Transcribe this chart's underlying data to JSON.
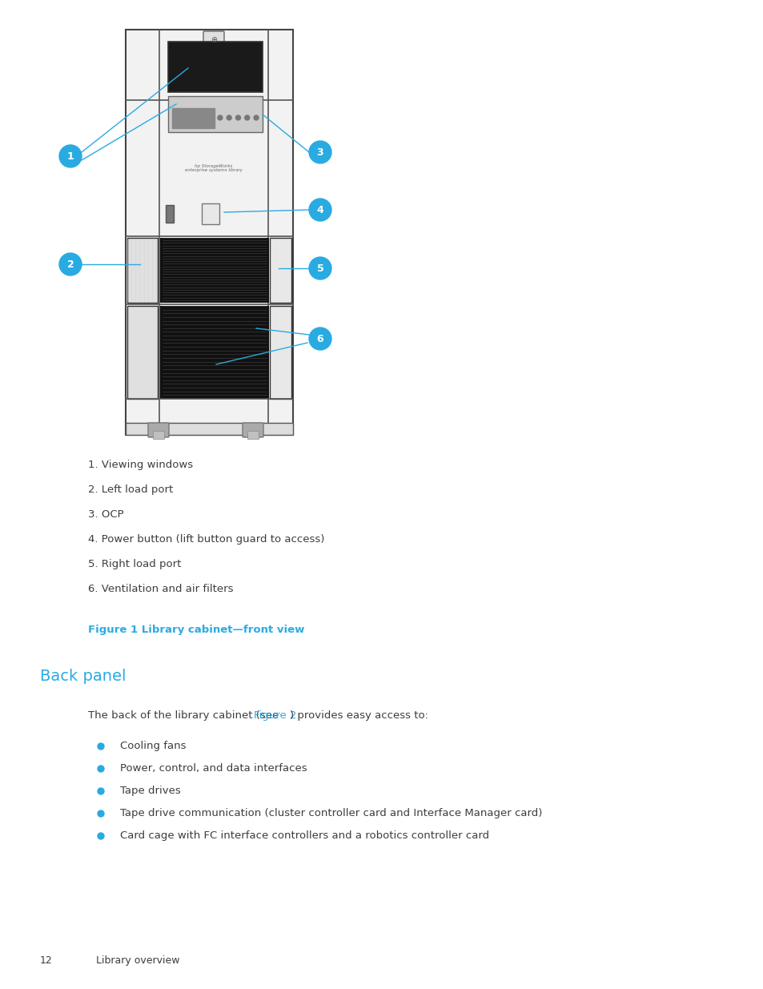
{
  "bg_color": "#ffffff",
  "page_width": 9.54,
  "page_height": 12.35,
  "callout_color": "#29abe2",
  "text_color": "#3d3d3d",
  "cyan_color": "#29abe2",
  "section_color": "#29abe2",
  "numbered_items": [
    "1. Viewing windows",
    "2. Left load port",
    "3. OCP",
    "4. Power button (lift button guard to access)",
    "5. Right load port",
    "6. Ventilation and air filters"
  ],
  "figure_caption": "Figure 1 Library cabinet—front view",
  "section_title": "Back panel",
  "body_intro_before": "The back of the library cabinet (see ",
  "body_intro_link": "Figure 2",
  "body_intro_after": ") provides easy access to:",
  "bullet_items": [
    "Cooling fans",
    "Power, control, and data interfaces",
    "Tape drives",
    "Tape drive communication (cluster controller card and Interface Manager card)",
    "Card cage with FC interface controllers and a robotics controller card"
  ],
  "footer_page": "12",
  "footer_text": "Library overview"
}
